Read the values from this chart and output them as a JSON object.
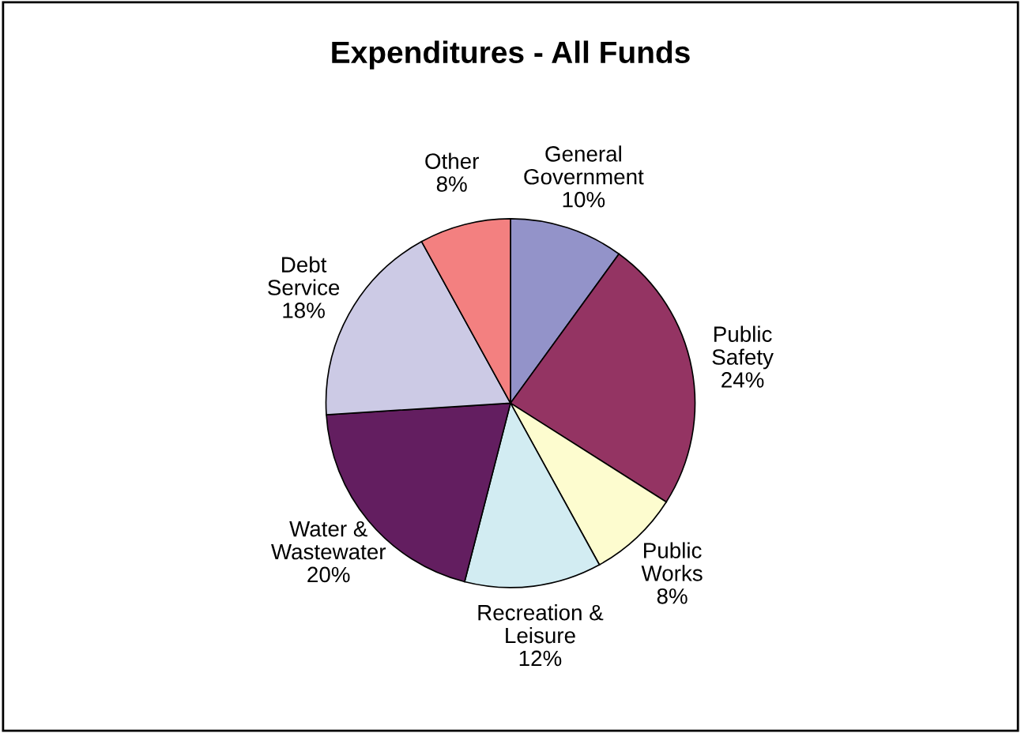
{
  "chart_data": {
    "type": "pie",
    "title": "Expenditures - All Funds",
    "categories": [
      "General\nGovernment",
      "Public\nSafety",
      "Public\nWorks",
      "Recreation &\nLeisure",
      "Water &\nWastewater",
      "Debt\nService",
      "Other"
    ],
    "values": [
      10,
      24,
      8,
      12,
      20,
      18,
      8
    ],
    "value_labels": [
      "10%",
      "24%",
      "8%",
      "12%",
      "20%",
      "18%",
      "8%"
    ],
    "colors": [
      "#9393c9",
      "#943463",
      "#fdfccf",
      "#d2ecf2",
      "#631e60",
      "#cccae5",
      "#f38080"
    ],
    "legend": false
  }
}
